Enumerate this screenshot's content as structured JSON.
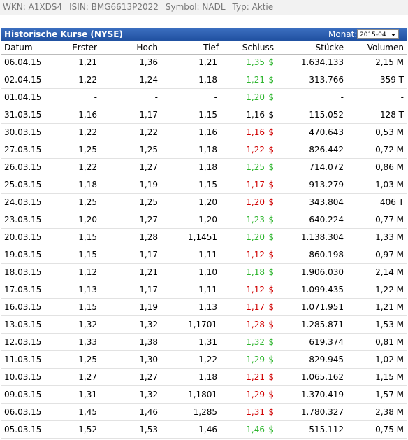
{
  "info": [
    "WKN: A1XDS4",
    "ISIN: BMG6613P2022",
    "Symbol: NADL",
    "Typ: Aktie"
  ],
  "panel": {
    "title": "Historische Kurse (NYSE)",
    "month_label": "Monat:",
    "month_value": "2015-04"
  },
  "table": {
    "columns": [
      "Datum",
      "Erster",
      "Hoch",
      "Tief",
      "Schluss",
      "Stücke",
      "Volumen"
    ],
    "rows": [
      [
        "06.04.15",
        "1,21",
        "1,36",
        "1,21",
        "1,35",
        "$",
        "1.634.133",
        "2,15 M"
      ],
      [
        "02.04.15",
        "1,22",
        "1,24",
        "1,18",
        "1,21",
        "$",
        "313.766",
        "359 T"
      ],
      [
        "01.04.15",
        "-",
        "-",
        "-",
        "1,20",
        "$",
        "-",
        "-"
      ],
      [
        "31.03.15",
        "1,16",
        "1,17",
        "1,15",
        "1,16",
        "$",
        "115.052",
        "128 T"
      ],
      [
        "30.03.15",
        "1,22",
        "1,22",
        "1,16",
        "1,16",
        "$",
        "470.643",
        "0,53 M"
      ],
      [
        "27.03.15",
        "1,25",
        "1,25",
        "1,18",
        "1,22",
        "$",
        "826.442",
        "0,72 M"
      ],
      [
        "26.03.15",
        "1,22",
        "1,27",
        "1,18",
        "1,25",
        "$",
        "714.072",
        "0,86 M"
      ],
      [
        "25.03.15",
        "1,18",
        "1,19",
        "1,15",
        "1,17",
        "$",
        "913.279",
        "1,03 M"
      ],
      [
        "24.03.15",
        "1,25",
        "1,25",
        "1,20",
        "1,20",
        "$",
        "343.804",
        "406 T"
      ],
      [
        "23.03.15",
        "1,20",
        "1,27",
        "1,20",
        "1,23",
        "$",
        "640.224",
        "0,77 M"
      ],
      [
        "20.03.15",
        "1,15",
        "1,28",
        "1,1451",
        "1,20",
        "$",
        "1.138.304",
        "1,33 M"
      ],
      [
        "19.03.15",
        "1,15",
        "1,17",
        "1,11",
        "1,12",
        "$",
        "860.198",
        "0,97 M"
      ],
      [
        "18.03.15",
        "1,12",
        "1,21",
        "1,10",
        "1,18",
        "$",
        "1.906.030",
        "2,14 M"
      ],
      [
        "17.03.15",
        "1,13",
        "1,17",
        "1,11",
        "1,12",
        "$",
        "1.099.435",
        "1,22 M"
      ],
      [
        "16.03.15",
        "1,15",
        "1,19",
        "1,13",
        "1,17",
        "$",
        "1.071.951",
        "1,21 M"
      ],
      [
        "13.03.15",
        "1,32",
        "1,32",
        "1,1701",
        "1,28",
        "$",
        "1.285.871",
        "1,53 M"
      ],
      [
        "12.03.15",
        "1,33",
        "1,38",
        "1,31",
        "1,32",
        "$",
        "619.374",
        "0,81 M"
      ],
      [
        "11.03.15",
        "1,25",
        "1,30",
        "1,22",
        "1,29",
        "$",
        "829.945",
        "1,02 M"
      ],
      [
        "10.03.15",
        "1,27",
        "1,27",
        "1,18",
        "1,21",
        "$",
        "1.065.162",
        "1,15 M"
      ],
      [
        "09.03.15",
        "1,31",
        "1,32",
        "1,1801",
        "1,29",
        "$",
        "1.370.419",
        "1,57 M"
      ],
      [
        "06.03.15",
        "1,45",
        "1,46",
        "1,285",
        "1,31",
        "$",
        "1.780.327",
        "2,38 M"
      ],
      [
        "05.03.15",
        "1,52",
        "1,53",
        "1,46",
        "1,46",
        "$",
        "515.112",
        "0,75 M"
      ]
    ],
    "close_colors": [
      "#2db52d",
      "#2db52d",
      "#2db52d",
      "#000000",
      "#d00000",
      "#d00000",
      "#2db52d",
      "#d00000",
      "#d00000",
      "#2db52d",
      "#2db52d",
      "#d00000",
      "#2db52d",
      "#d00000",
      "#d00000",
      "#d00000",
      "#2db52d",
      "#2db52d",
      "#d00000",
      "#d00000",
      "#d00000",
      "#2db52d"
    ]
  }
}
